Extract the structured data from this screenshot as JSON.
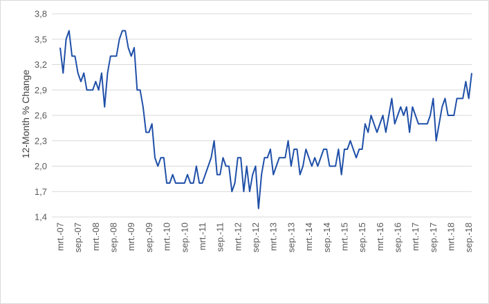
{
  "chart_data": {
    "type": "line",
    "title": "",
    "xlabel": "",
    "ylabel": "12-Month % Change",
    "ylim": [
      1.4,
      3.8
    ],
    "yticks": [
      "1,4",
      "1,7",
      "2,0",
      "2,3",
      "2,6",
      "2,9",
      "3,2",
      "3,5",
      "3,8"
    ],
    "grid": "horizontal",
    "legend": "none",
    "line_color": "#1f4fa8",
    "xtick_labels": [
      "mrt.-07",
      "sep.-07",
      "mrt.-08",
      "sep.-08",
      "mrt.-09",
      "sep.-09",
      "mrt.-10",
      "sep.-10",
      "mrt.-11",
      "sep.-11",
      "mrt.-12",
      "sep.-12",
      "mrt.-13",
      "sep.-13",
      "mrt.-14",
      "sep.-14",
      "mrt.-15",
      "sep.-15",
      "mrt.-16",
      "sep.-16",
      "mrt.-17",
      "sep.-17",
      "mrt.-18",
      "sep.-18"
    ],
    "start": "2007-03",
    "series": [
      {
        "values": [
          3.4,
          3.1,
          3.5,
          3.6,
          3.3,
          3.3,
          3.1,
          3.0,
          3.1,
          2.9,
          2.9,
          2.9,
          3.0,
          2.9,
          3.1,
          2.7,
          3.1,
          3.3,
          3.3,
          3.3,
          3.5,
          3.6,
          3.6,
          3.4,
          3.3,
          3.4,
          2.9,
          2.9,
          2.7,
          2.4,
          2.4,
          2.5,
          2.1,
          2.0,
          2.1,
          2.1,
          1.8,
          1.8,
          1.9,
          1.8,
          1.8,
          1.8,
          1.8,
          1.9,
          1.8,
          1.8,
          2.0,
          1.8,
          1.8,
          1.9,
          2.0,
          2.1,
          2.3,
          1.9,
          1.9,
          2.1,
          2.0,
          2.0,
          1.7,
          1.8,
          2.1,
          2.1,
          1.7,
          2.0,
          1.7,
          1.9,
          2.0,
          1.5,
          1.9,
          2.1,
          2.1,
          2.2,
          1.9,
          2.0,
          2.1,
          2.1,
          2.1,
          2.3,
          2.0,
          2.2,
          2.2,
          1.9,
          2.0,
          2.2,
          2.1,
          2.0,
          2.1,
          2.0,
          2.1,
          2.2,
          2.2,
          2.0,
          2.0,
          2.0,
          2.2,
          1.9,
          2.2,
          2.2,
          2.3,
          2.2,
          2.1,
          2.2,
          2.2,
          2.5,
          2.4,
          2.6,
          2.5,
          2.4,
          2.5,
          2.6,
          2.4,
          2.6,
          2.8,
          2.5,
          2.6,
          2.7,
          2.6,
          2.7,
          2.4,
          2.7,
          2.6,
          2.5,
          2.5,
          2.5,
          2.5,
          2.6,
          2.8,
          2.3,
          2.5,
          2.7,
          2.8,
          2.6,
          2.6,
          2.6,
          2.8,
          2.8,
          2.8,
          3.0,
          2.8,
          3.1
        ]
      }
    ]
  }
}
